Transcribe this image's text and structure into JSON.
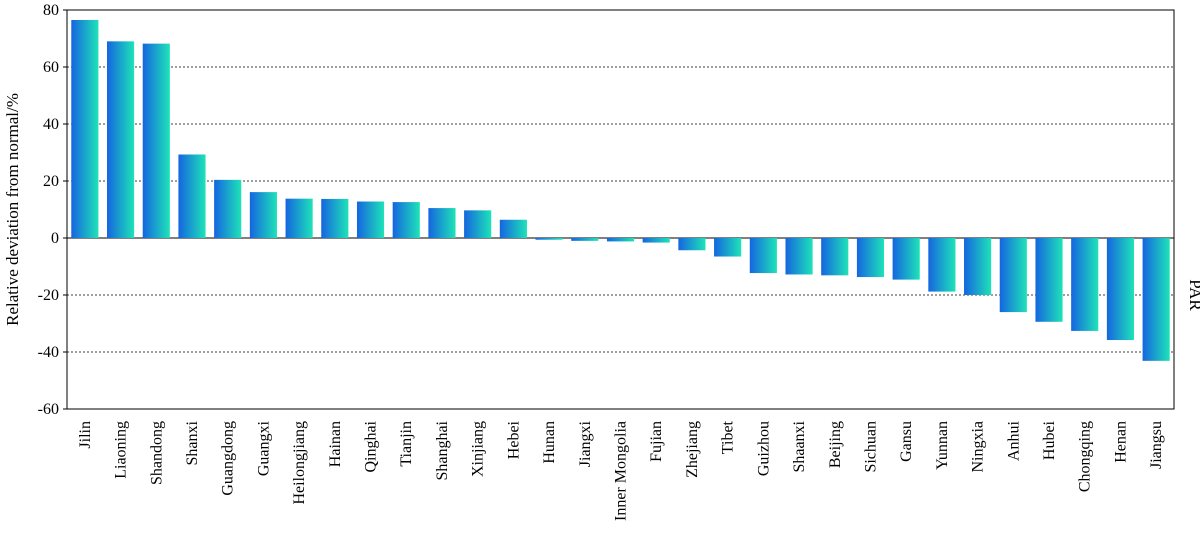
{
  "chart_data": {
    "type": "bar",
    "ylabel": "Relative deviation from normal/%",
    "right_label": "PAR",
    "ylim": [
      -60,
      80
    ],
    "yticks": [
      -60,
      -40,
      -20,
      0,
      20,
      40,
      60,
      80
    ],
    "grid": "horizontal dashed",
    "colors": {
      "start": "#1565e0",
      "end": "#1ee3b8"
    },
    "categories": [
      "Jilin",
      "Liaoning",
      "Shandong",
      "Shanxi",
      "Guangdong",
      "Guangxi",
      "Heilongjiang",
      "Hainan",
      "Qinghai",
      "Tianjin",
      "Shanghai",
      "Xinjiang",
      "Hebei",
      "Hunan",
      "Jiangxi",
      "Inner Mongolia",
      "Fujian",
      "Zhejiang",
      "Tibet",
      "Guizhou",
      "Shaanxi",
      "Beijing",
      "Sichuan",
      "Gansu",
      "Yunnan",
      "Ningxia",
      "Anhui",
      "Hubei",
      "Chongqing",
      "Henan",
      "Jiangsu"
    ],
    "values": [
      76.5,
      69.0,
      68.2,
      29.3,
      20.4,
      16.1,
      13.8,
      13.7,
      12.8,
      12.6,
      10.5,
      9.7,
      6.4,
      -0.6,
      -1.0,
      -1.2,
      -1.6,
      -4.3,
      -6.5,
      -12.3,
      -12.8,
      -13.1,
      -13.7,
      -14.6,
      -18.8,
      -20.0,
      -26.0,
      -29.4,
      -32.6,
      -35.8,
      -43.1
    ]
  }
}
